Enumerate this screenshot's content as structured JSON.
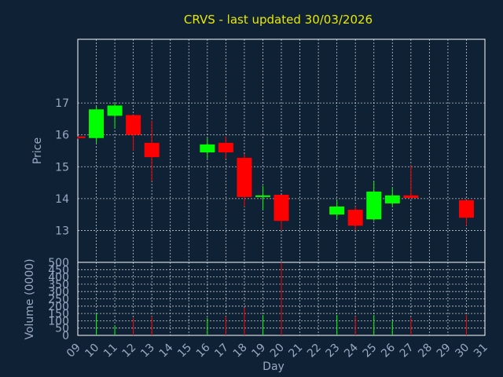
{
  "chart_data": {
    "type": "candlestick",
    "title": "CRVS - last updated 30/03/2026",
    "xlabel": "Day",
    "price_ylabel": "Price",
    "volume_ylabel": "Volume (0000)",
    "price_yticks": [
      13,
      14,
      15,
      16,
      17
    ],
    "price_ylim": [
      12.0,
      19.0
    ],
    "volume_yticks": [
      0,
      50,
      100,
      150,
      200,
      250,
      300,
      350,
      400,
      450,
      500
    ],
    "volume_ylim": [
      0,
      500
    ],
    "x_tick_labels": [
      "09",
      "10",
      "11",
      "12",
      "13",
      "14",
      "15",
      "16",
      "17",
      "18",
      "19",
      "20",
      "21",
      "22",
      "23",
      "24",
      "25",
      "26",
      "27",
      "28",
      "29",
      "30",
      "31"
    ],
    "colors": {
      "up": "#00ff00",
      "down": "#ff0000"
    },
    "candles": [
      {
        "day": "09",
        "open": 15.95,
        "high": 15.95,
        "low": 15.88,
        "close": 15.9
      },
      {
        "day": "10",
        "open": 15.9,
        "high": 16.9,
        "low": 15.75,
        "close": 16.8
      },
      {
        "day": "11",
        "open": 16.6,
        "high": 17.0,
        "low": 16.2,
        "close": 16.92
      },
      {
        "day": "12",
        "open": 16.62,
        "high": 16.62,
        "low": 15.5,
        "close": 16.0
      },
      {
        "day": "13",
        "open": 15.75,
        "high": 16.45,
        "low": 14.55,
        "close": 15.3
      },
      {
        "day": "16",
        "open": 15.45,
        "high": 15.9,
        "low": 15.25,
        "close": 15.7
      },
      {
        "day": "17",
        "open": 15.75,
        "high": 15.95,
        "low": 15.25,
        "close": 15.45
      },
      {
        "day": "18",
        "open": 15.28,
        "high": 15.4,
        "low": 13.75,
        "close": 14.05
      },
      {
        "day": "19",
        "open": 14.05,
        "high": 14.4,
        "low": 13.65,
        "close": 14.1
      },
      {
        "day": "20",
        "open": 14.12,
        "high": 14.12,
        "low": 13.0,
        "close": 13.3
      },
      {
        "day": "23",
        "open": 13.5,
        "high": 13.95,
        "low": 13.35,
        "close": 13.75
      },
      {
        "day": "24",
        "open": 13.65,
        "high": 13.75,
        "low": 13.0,
        "close": 13.15
      },
      {
        "day": "25",
        "open": 13.35,
        "high": 14.55,
        "low": 13.3,
        "close": 14.22
      },
      {
        "day": "26",
        "open": 13.85,
        "high": 14.35,
        "low": 13.75,
        "close": 14.1
      },
      {
        "day": "27",
        "open": 14.1,
        "high": 15.05,
        "low": 14.0,
        "close": 14.02
      },
      {
        "day": "30",
        "open": 13.95,
        "high": 13.95,
        "low": 13.15,
        "close": 13.4
      }
    ],
    "volume": [
      {
        "day": "10",
        "value": 150,
        "dir": "up"
      },
      {
        "day": "11",
        "value": 70,
        "dir": "up"
      },
      {
        "day": "12",
        "value": 120,
        "dir": "down"
      },
      {
        "day": "13",
        "value": 130,
        "dir": "down"
      },
      {
        "day": "16",
        "value": 120,
        "dir": "up"
      },
      {
        "day": "17",
        "value": 130,
        "dir": "down"
      },
      {
        "day": "18",
        "value": 190,
        "dir": "down"
      },
      {
        "day": "19",
        "value": 140,
        "dir": "up"
      },
      {
        "day": "20",
        "value": 500,
        "dir": "down"
      },
      {
        "day": "23",
        "value": 140,
        "dir": "up"
      },
      {
        "day": "24",
        "value": 130,
        "dir": "down"
      },
      {
        "day": "25",
        "value": 140,
        "dir": "up"
      },
      {
        "day": "26",
        "value": 100,
        "dir": "up"
      },
      {
        "day": "27",
        "value": 120,
        "dir": "down"
      },
      {
        "day": "30",
        "value": 140,
        "dir": "down"
      }
    ]
  }
}
